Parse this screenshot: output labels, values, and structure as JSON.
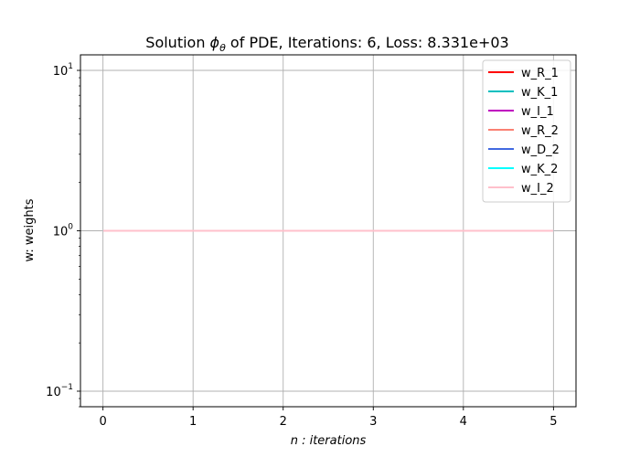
{
  "chart_data": {
    "type": "line",
    "title_prefix": "Solution ",
    "title_symbol": "ϕ",
    "title_subscript": "θ",
    "title_suffix": " of PDE, Iterations: 6, Loss: 8.331e+03",
    "xlabel_italic": "n",
    "xlabel_rest": " : iterations",
    "ylabel": "w: weights",
    "x": [
      0,
      1,
      2,
      3,
      4,
      5
    ],
    "xlim": [
      -0.25,
      5.25
    ],
    "xticks": [
      0,
      1,
      2,
      3,
      4,
      5
    ],
    "xtick_labels": [
      "0",
      "1",
      "2",
      "3",
      "4",
      "5"
    ],
    "yscale": "log",
    "ylim": [
      0.08,
      12.5
    ],
    "yticks": [
      0.1,
      1,
      10
    ],
    "ytick_bases": [
      "10",
      "10",
      "10"
    ],
    "ytick_exponents": [
      "−1",
      "0",
      "1"
    ],
    "grid": true,
    "legend_position": "top-right",
    "series": [
      {
        "name": "w_R_1",
        "color": "#ff0000",
        "values": [
          1,
          1,
          1,
          1,
          1,
          1
        ]
      },
      {
        "name": "w_K_1",
        "color": "#00bfbf",
        "values": [
          1,
          1,
          1,
          1,
          1,
          1
        ]
      },
      {
        "name": "w_I_1",
        "color": "#bf00bf",
        "values": [
          1,
          1,
          1,
          1,
          1,
          1
        ]
      },
      {
        "name": "w_R_2",
        "color": "#fa8072",
        "values": [
          1,
          1,
          1,
          1,
          1,
          1
        ]
      },
      {
        "name": "w_D_2",
        "color": "#4169e1",
        "values": [
          1,
          1,
          1,
          1,
          1,
          1
        ]
      },
      {
        "name": "w_K_2",
        "color": "#00ffff",
        "values": [
          1,
          1,
          1,
          1,
          1,
          1
        ]
      },
      {
        "name": "w_I_2",
        "color": "#ffc0cb",
        "values": [
          1,
          1,
          1,
          1,
          1,
          1
        ]
      }
    ]
  }
}
